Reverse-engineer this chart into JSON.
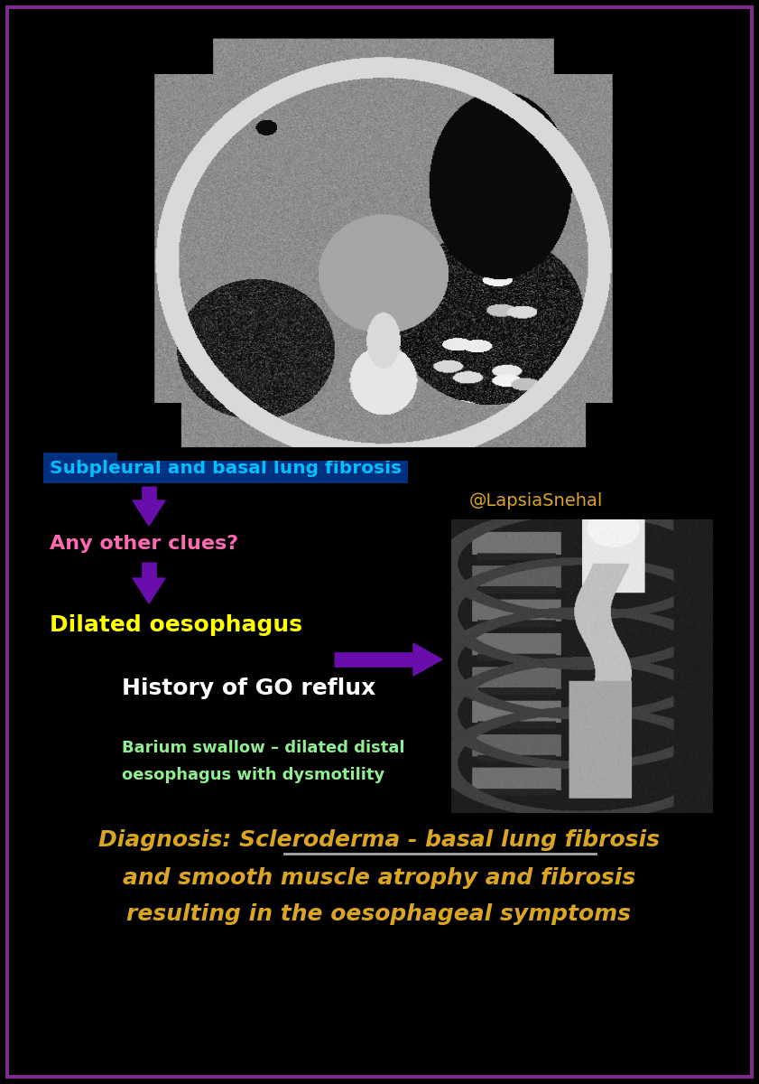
{
  "bg_color": "#000000",
  "border_color": "#7B2D8B",
  "border_width": 3,
  "label_subpleural": "Subpleural and basal lung fibrosis",
  "label_subpleural_color": "#00BFFF",
  "label_subpleural_bg": "#003080",
  "arrow_color": "#6A0DAD",
  "label_any_clues": "Any other clues?",
  "label_any_clues_color": "#FF69B4",
  "label_dilated": "Dilated oesophagus",
  "label_dilated_color": "#FFFF00",
  "label_history": "History of GO reflux",
  "label_history_color": "#FFFFFF",
  "label_barium_line1": "Barium swallow – dilated distal",
  "label_barium_line2": "oesophagus with dysmotility",
  "label_barium_color": "#90EE90",
  "label_handle": "@LapsiaSnehal",
  "label_handle_color": "#DAA520",
  "diagnosis_line1": "Diagnosis: Scleroderma - basal lung fibrosis",
  "diagnosis_line2": "and smooth muscle atrophy and fibrosis",
  "diagnosis_line3": "resulting in the oesophageal symptoms",
  "diagnosis_color": "#DAA520"
}
